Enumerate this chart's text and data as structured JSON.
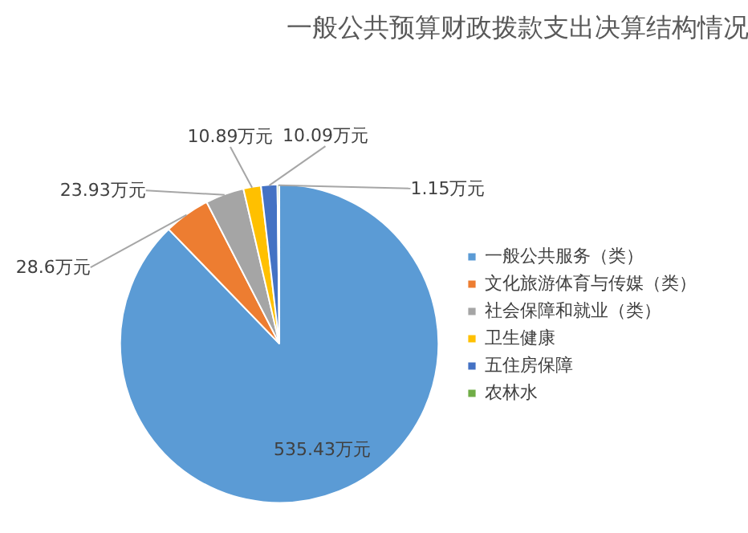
{
  "chart_data": {
    "type": "pie",
    "title": "一般公共预算财政拨款支出决算结构情况",
    "categories": [
      "一般公共服务（类）",
      "文化旅游体育与传媒（类）",
      "社会保障和就业（类）",
      "卫生健康",
      "五住房保障",
      "农林水"
    ],
    "values": [
      535.43,
      28.6,
      23.93,
      10.89,
      10.09,
      1.15
    ],
    "colors": [
      "#5b9bd5",
      "#ed7d31",
      "#a5a5a5",
      "#ffc000",
      "#4472c4",
      "#70ad47"
    ],
    "value_labels": [
      "535.43万元",
      "28.6万元",
      "23.93万元",
      "10.89万元",
      "10.09万元",
      "1.15万元"
    ],
    "legend": "right"
  }
}
